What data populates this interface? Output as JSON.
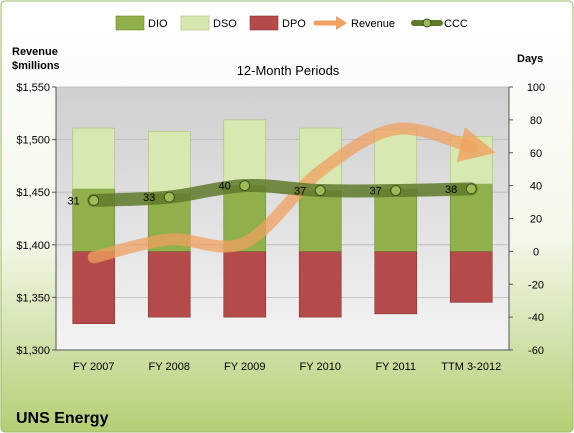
{
  "chart_data": {
    "type": "bar",
    "subtitle": "12-Month Periods",
    "company": "UNS Energy",
    "left_axis": {
      "title_line1": "Revenue",
      "title_line2": "$millions",
      "range": [
        1300,
        1550
      ],
      "ticks": [
        1300,
        1350,
        1400,
        1450,
        1500,
        1550
      ],
      "tick_labels": [
        "$1,300",
        "$1,350",
        "$1,400",
        "$1,450",
        "$1,500",
        "$1,550"
      ]
    },
    "right_axis": {
      "title": "Days",
      "range": [
        -60,
        100
      ],
      "ticks": [
        -60,
        -40,
        -20,
        0,
        20,
        40,
        60,
        80,
        100
      ],
      "tick_labels": [
        "-60",
        "-40",
        "-20",
        "0",
        "20",
        "40",
        "60",
        "80",
        "100"
      ]
    },
    "categories": [
      "FY 2007",
      "FY 2008",
      "FY 2009",
      "FY 2010",
      "FY 2011",
      "TTM 3-2012"
    ],
    "series": [
      {
        "name": "DIO",
        "axis": "right",
        "kind": "stacked-bar",
        "color": "#8fb04a",
        "values": [
          38,
          35,
          40,
          37,
          38,
          41
        ]
      },
      {
        "name": "DSO",
        "axis": "right",
        "kind": "stacked-bar",
        "color": "#d7e8b0",
        "values": [
          37,
          38,
          40,
          38,
          36,
          29
        ]
      },
      {
        "name": "DPO",
        "axis": "right",
        "kind": "stacked-bar",
        "color": "#b54a4a",
        "values": [
          -44,
          -40,
          -40,
          -40,
          -38,
          -31
        ]
      },
      {
        "name": "Revenue",
        "axis": "left",
        "kind": "line",
        "color": "#f0a060",
        "values": [
          1388,
          1405,
          1402,
          1470,
          1510,
          1493
        ]
      },
      {
        "name": "CCC",
        "axis": "right",
        "kind": "line",
        "color": "#5f7a2c",
        "values": [
          31,
          33,
          40,
          37,
          37,
          38
        ]
      }
    ],
    "data_labels": [
      "31",
      "33",
      "40",
      "37",
      "37",
      "38"
    ],
    "legend": {
      "position": "top"
    },
    "grid": true
  }
}
